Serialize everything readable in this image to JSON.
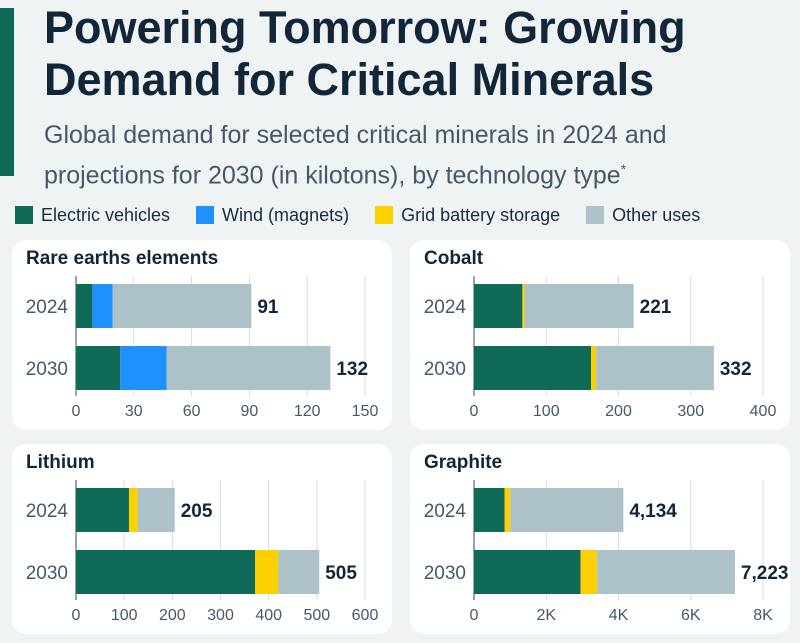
{
  "header": {
    "title": "Powering Tomorrow: Growing Demand for Critical Minerals",
    "subtitle": "Global demand for selected critical minerals in 2024 and projections for 2030 (in kilotons), by technology type",
    "footnote_mark": "*"
  },
  "colors": {
    "accent": "#0f6b57",
    "ev": "#0f6b57",
    "wind": "#1e90ff",
    "grid": "#ffd000",
    "other": "#adc1c8"
  },
  "legend": [
    {
      "label": "Electric vehicles",
      "color": "#0f6b57"
    },
    {
      "label": "Wind (magnets)",
      "color": "#1e90ff"
    },
    {
      "label": "Grid battery storage",
      "color": "#ffd000"
    },
    {
      "label": "Other uses",
      "color": "#adc1c8"
    }
  ],
  "chart_data": [
    {
      "type": "bar",
      "title": "Rare earths elements",
      "categories": [
        "2024",
        "2030"
      ],
      "series": [
        {
          "name": "Electric vehicles",
          "values": [
            8.5,
            23
          ]
        },
        {
          "name": "Wind (magnets)",
          "values": [
            10.5,
            24
          ]
        },
        {
          "name": "Grid battery storage",
          "values": [
            0,
            0
          ]
        },
        {
          "name": "Other uses",
          "values": [
            72,
            85
          ]
        }
      ],
      "totals": [
        "91",
        "132"
      ],
      "xlim": [
        0,
        150
      ],
      "ticks": [
        0,
        30,
        60,
        90,
        120,
        150
      ],
      "tick_labels": [
        "0",
        "30",
        "60",
        "90",
        "120",
        "150"
      ]
    },
    {
      "type": "bar",
      "title": "Cobalt",
      "categories": [
        "2024",
        "2030"
      ],
      "series": [
        {
          "name": "Electric vehicles",
          "values": [
            67,
            162
          ]
        },
        {
          "name": "Wind (magnets)",
          "values": [
            0,
            0
          ]
        },
        {
          "name": "Grid battery storage",
          "values": [
            3,
            7
          ]
        },
        {
          "name": "Other uses",
          "values": [
            151,
            163
          ]
        }
      ],
      "totals": [
        "221",
        "332"
      ],
      "xlim": [
        0,
        400
      ],
      "ticks": [
        0,
        100,
        200,
        300,
        400
      ],
      "tick_labels": [
        "0",
        "100",
        "200",
        "300",
        "400"
      ]
    },
    {
      "type": "bar",
      "title": "Lithium",
      "categories": [
        "2024",
        "2030"
      ],
      "series": [
        {
          "name": "Electric vehicles",
          "values": [
            110,
            372
          ]
        },
        {
          "name": "Wind (magnets)",
          "values": [
            0,
            0
          ]
        },
        {
          "name": "Grid battery storage",
          "values": [
            18,
            48
          ]
        },
        {
          "name": "Other uses",
          "values": [
            77,
            85
          ]
        }
      ],
      "totals": [
        "205",
        "505"
      ],
      "xlim": [
        0,
        600
      ],
      "ticks": [
        0,
        100,
        200,
        300,
        400,
        500,
        600
      ],
      "tick_labels": [
        "0",
        "100",
        "200",
        "300",
        "400",
        "500",
        "600"
      ]
    },
    {
      "type": "bar",
      "title": "Graphite",
      "categories": [
        "2024",
        "2030"
      ],
      "series": [
        {
          "name": "Electric vehicles",
          "values": [
            850,
            2950
          ]
        },
        {
          "name": "Wind (magnets)",
          "values": [
            0,
            0
          ]
        },
        {
          "name": "Grid battery storage",
          "values": [
            150,
            450
          ]
        },
        {
          "name": "Other uses",
          "values": [
            3134,
            3823
          ]
        }
      ],
      "totals": [
        "4,134",
        "7,223"
      ],
      "xlim": [
        0,
        8000
      ],
      "ticks": [
        0,
        2000,
        4000,
        6000,
        8000
      ],
      "tick_labels": [
        "0",
        "2K",
        "4K",
        "6K",
        "8K"
      ]
    }
  ]
}
